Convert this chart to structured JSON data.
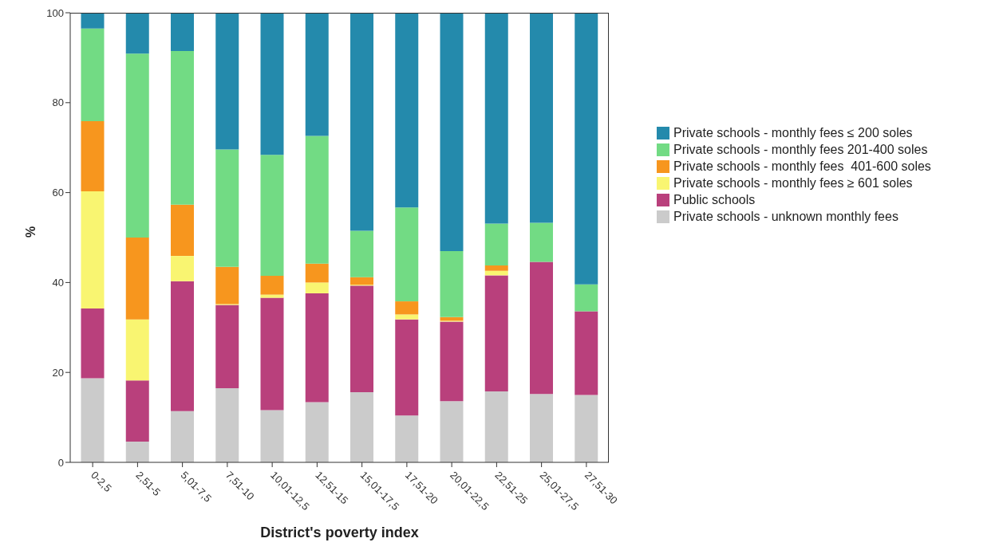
{
  "chart_data": {
    "type": "bar",
    "stacked": true,
    "xlabel": "District's poverty index",
    "ylabel": "%",
    "categories": [
      "0-2,5",
      "2,51-5",
      "5,01-7,5",
      "7,51-10",
      "10,01-12,5",
      "12,51-15",
      "15,01-17,5",
      "17,51-20",
      "20,01-22,5",
      "22,51-25",
      "25,01-27,5",
      "27,51-30"
    ],
    "series": [
      {
        "name": "Private schools - unknown monthly fees",
        "color": "#cbcbcb",
        "values": [
          18.7,
          4.6,
          11.4,
          16.5,
          11.6,
          13.4,
          15.6,
          10.4,
          13.6,
          15.8,
          15.2,
          15.0
        ]
      },
      {
        "name": "Public schools",
        "color": "#b9407c",
        "values": [
          15.5,
          13.6,
          28.9,
          18.5,
          25.0,
          24.2,
          23.7,
          21.4,
          17.7,
          25.8,
          29.4,
          18.6
        ]
      },
      {
        "name": "Private schools - monthly fees ≥ 601 soles",
        "color": "#f9f571",
        "values": [
          26.1,
          13.6,
          5.6,
          0.2,
          0.7,
          2.4,
          0.2,
          1.1,
          0.2,
          1.0,
          0,
          0
        ]
      },
      {
        "name": "Private schools - monthly fees  401-600 soles",
        "color": "#f7961e",
        "values": [
          15.6,
          18.2,
          11.4,
          8.3,
          4.2,
          4.2,
          1.7,
          2.9,
          0.8,
          1.2,
          0,
          0
        ]
      },
      {
        "name": "Private schools - monthly fees 201-400 soles",
        "color": "#72db84",
        "values": [
          20.6,
          40.9,
          34.2,
          26.1,
          26.9,
          28.4,
          10.3,
          20.9,
          14.7,
          9.3,
          8.7,
          6.0
        ]
      },
      {
        "name": "Private schools - monthly fees ≤ 200 soles",
        "color": "#248aac",
        "values": [
          3.5,
          9.1,
          8.5,
          30.4,
          31.6,
          27.4,
          48.5,
          43.3,
          53.0,
          46.9,
          46.7,
          60.4
        ]
      }
    ],
    "ylim": [
      0,
      100
    ],
    "yticks": [
      0,
      20,
      40,
      60,
      80,
      100
    ],
    "grid": false,
    "legend": "right"
  }
}
